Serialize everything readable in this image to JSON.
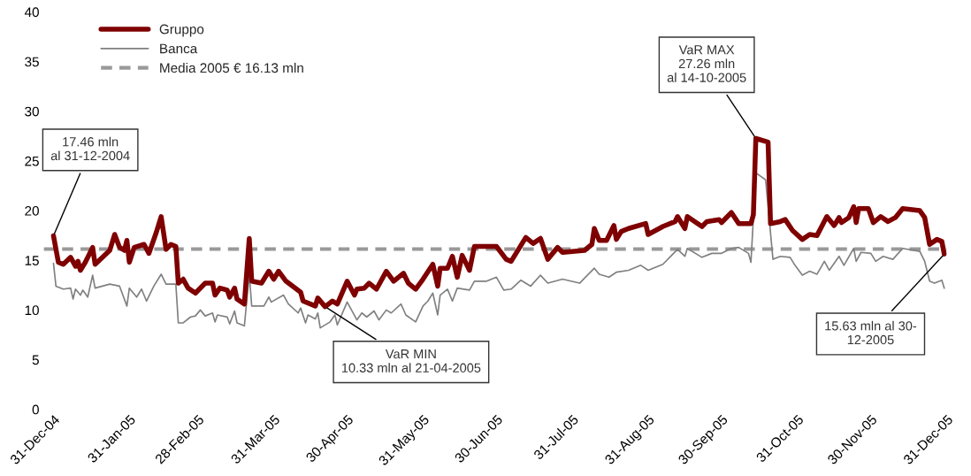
{
  "chart_data": {
    "type": "line",
    "xlim": [
      "2004-12-27",
      "2005-12-31"
    ],
    "xticks": [
      {
        "value": "2004-12-31",
        "label": "31-Dec-04"
      },
      {
        "value": "2005-01-31",
        "label": "31-Jan-05"
      },
      {
        "value": "2005-02-28",
        "label": "28-Feb-05"
      },
      {
        "value": "2005-03-31",
        "label": "31-Mar-05"
      },
      {
        "value": "2005-04-30",
        "label": "30-Apr-05"
      },
      {
        "value": "2005-05-31",
        "label": "31-May-05"
      },
      {
        "value": "2005-06-30",
        "label": "30-Jun-05"
      },
      {
        "value": "2005-07-31",
        "label": "31-Jul-05"
      },
      {
        "value": "2005-08-31",
        "label": "31-Aug-05"
      },
      {
        "value": "2005-09-30",
        "label": "30-Sep-05"
      },
      {
        "value": "2005-10-31",
        "label": "31-Oct-05"
      },
      {
        "value": "2005-11-30",
        "label": "30-Nov-05"
      },
      {
        "value": "2005-12-31",
        "label": "31-Dec-05"
      }
    ],
    "ylim": [
      0,
      40
    ],
    "yticks": [
      0,
      5,
      10,
      15,
      20,
      25,
      30,
      35,
      40
    ],
    "grid": false,
    "legend": "top left",
    "series": [
      {
        "name": "Gruppo",
        "color": "#7f0000",
        "x": [
          "2004-12-31",
          "2005-01-02",
          "2005-01-04",
          "2005-01-07",
          "2005-01-09",
          "2005-01-10",
          "2005-01-11",
          "2005-01-13",
          "2005-01-16",
          "2005-01-17",
          "2005-01-23",
          "2005-01-25",
          "2005-01-27",
          "2005-01-29",
          "2005-01-30",
          "2005-01-31",
          "2005-02-02",
          "2005-02-06",
          "2005-02-08",
          "2005-02-11",
          "2005-02-13",
          "2005-02-15",
          "2005-02-17",
          "2005-02-19",
          "2005-02-20",
          "2005-02-22",
          "2005-02-24",
          "2005-02-27",
          "2005-03-03",
          "2005-03-06",
          "2005-03-07",
          "2005-03-09",
          "2005-03-12",
          "2005-03-13",
          "2005-03-15",
          "2005-03-16",
          "2005-03-19",
          "2005-03-21",
          "2005-03-22",
          "2005-03-26",
          "2005-03-29",
          "2005-03-31",
          "2005-04-02",
          "2005-04-05",
          "2005-04-11",
          "2005-04-12",
          "2005-04-17",
          "2005-04-18",
          "2005-04-21",
          "2005-04-24",
          "2005-04-26",
          "2005-04-30",
          "2005-05-03",
          "2005-05-04",
          "2005-05-07",
          "2005-05-09",
          "2005-05-12",
          "2005-05-16",
          "2005-05-19",
          "2005-05-23",
          "2005-05-25",
          "2005-05-28",
          "2005-05-31",
          "2005-06-04",
          "2005-06-06",
          "2005-06-07",
          "2005-06-10",
          "2005-06-12",
          "2005-06-14",
          "2005-06-16",
          "2005-06-19",
          "2005-06-21",
          "2005-06-30",
          "2005-07-04",
          "2005-07-06",
          "2005-07-12",
          "2005-07-15",
          "2005-07-18",
          "2005-07-21",
          "2005-07-25",
          "2005-07-27",
          "2005-08-05",
          "2005-08-08",
          "2005-08-09",
          "2005-08-11",
          "2005-08-14",
          "2005-08-17",
          "2005-08-18",
          "2005-08-20",
          "2005-08-23",
          "2005-08-30",
          "2005-08-31",
          "2005-09-06",
          "2005-09-11",
          "2005-09-12",
          "2005-09-15",
          "2005-09-16",
          "2005-09-22",
          "2005-09-24",
          "2005-09-29",
          "2005-09-30",
          "2005-10-04",
          "2005-10-07",
          "2005-10-12",
          "2005-10-13",
          "2005-10-14",
          "2005-10-19",
          "2005-10-20",
          "2005-10-24",
          "2005-10-26",
          "2005-10-29",
          "2005-11-02",
          "2005-11-05",
          "2005-11-08",
          "2005-11-12",
          "2005-11-15",
          "2005-11-17",
          "2005-11-18",
          "2005-11-21",
          "2005-11-23",
          "2005-11-24",
          "2005-11-25",
          "2005-11-29",
          "2005-12-01",
          "2005-12-04",
          "2005-12-07",
          "2005-12-10",
          "2005-12-13",
          "2005-12-20",
          "2005-12-22",
          "2005-12-24",
          "2005-12-27",
          "2005-12-29",
          "2005-12-30"
        ],
        "values": [
          17.46,
          14.8,
          14.6,
          15.3,
          14.4,
          14.9,
          14.0,
          14.8,
          16.3,
          14.6,
          16.0,
          17.6,
          16.3,
          16.0,
          17.0,
          14.8,
          16.3,
          16.6,
          15.7,
          17.8,
          19.4,
          16.1,
          16.6,
          16.4,
          12.7,
          13.1,
          12.2,
          11.7,
          12.7,
          12.7,
          11.5,
          12.2,
          12.0,
          11.3,
          12.2,
          11.1,
          10.6,
          17.2,
          12.9,
          12.7,
          13.9,
          13.1,
          13.9,
          12.9,
          11.8,
          10.9,
          10.4,
          11.2,
          10.33,
          10.9,
          10.6,
          12.9,
          11.5,
          12.1,
          12.2,
          12.7,
          12.1,
          13.9,
          12.9,
          13.7,
          12.7,
          12.1,
          13.1,
          14.6,
          12.4,
          14.2,
          14.2,
          15.4,
          13.3,
          15.5,
          14.0,
          16.4,
          16.4,
          15.1,
          14.9,
          17.3,
          16.7,
          17.2,
          15.1,
          16.3,
          15.8,
          16.0,
          16.6,
          18.2,
          17.0,
          17.0,
          18.5,
          17.1,
          17.9,
          18.2,
          18.7,
          17.6,
          18.4,
          18.9,
          19.4,
          18.2,
          19.4,
          18.4,
          18.9,
          19.1,
          18.8,
          19.8,
          18.7,
          18.7,
          19.6,
          27.26,
          26.9,
          18.7,
          18.9,
          19.1,
          18.0,
          17.1,
          17.6,
          17.5,
          19.4,
          18.5,
          19.3,
          18.8,
          19.3,
          20.4,
          18.8,
          20.2,
          20.2,
          18.8,
          19.4,
          18.9,
          19.3,
          20.2,
          20.0,
          19.3,
          16.6,
          17.1,
          16.9,
          15.63
        ]
      },
      {
        "name": "Banca",
        "color": "#808080",
        "x": [
          "2004-12-31",
          "2005-01-01",
          "2005-01-04",
          "2005-01-07",
          "2005-01-08",
          "2005-01-09",
          "2005-01-11",
          "2005-01-12",
          "2005-01-14",
          "2005-01-16",
          "2005-01-17",
          "2005-01-23",
          "2005-01-27",
          "2005-01-30",
          "2005-01-31",
          "2005-02-03",
          "2005-02-05",
          "2005-02-07",
          "2005-02-10",
          "2005-02-13",
          "2005-02-15",
          "2005-02-19",
          "2005-02-20",
          "2005-02-22",
          "2005-02-25",
          "2005-02-27",
          "2005-03-01",
          "2005-03-03",
          "2005-03-06",
          "2005-03-07",
          "2005-03-08",
          "2005-03-12",
          "2005-03-13",
          "2005-03-15",
          "2005-03-16",
          "2005-03-19",
          "2005-03-21",
          "2005-03-22",
          "2005-03-27",
          "2005-03-29",
          "2005-03-30",
          "2005-04-04",
          "2005-04-06",
          "2005-04-10",
          "2005-04-11",
          "2005-04-13",
          "2005-04-14",
          "2005-04-17",
          "2005-04-18",
          "2005-04-19",
          "2005-04-23",
          "2005-04-25",
          "2005-04-26",
          "2005-04-30",
          "2005-05-04",
          "2005-05-06",
          "2005-05-08",
          "2005-05-11",
          "2005-05-13",
          "2005-05-16",
          "2005-05-18",
          "2005-05-22",
          "2005-05-24",
          "2005-05-28",
          "2005-05-31",
          "2005-06-02",
          "2005-06-04",
          "2005-06-06",
          "2005-06-07",
          "2005-06-10",
          "2005-06-12",
          "2005-06-14",
          "2005-06-19",
          "2005-06-21",
          "2005-06-26",
          "2005-06-30",
          "2005-07-03",
          "2005-07-06",
          "2005-07-10",
          "2005-07-14",
          "2005-07-18",
          "2005-07-21",
          "2005-07-27",
          "2005-08-03",
          "2005-08-05",
          "2005-08-09",
          "2005-08-11",
          "2005-08-15",
          "2005-08-18",
          "2005-08-23",
          "2005-08-28",
          "2005-08-31",
          "2005-09-06",
          "2005-09-12",
          "2005-09-15",
          "2005-09-16",
          "2005-09-22",
          "2005-09-26",
          "2005-09-30",
          "2005-10-04",
          "2005-10-07",
          "2005-10-11",
          "2005-10-12",
          "2005-10-14",
          "2005-10-18",
          "2005-10-21",
          "2005-10-24",
          "2005-10-28",
          "2005-10-30",
          "2005-11-02",
          "2005-11-05",
          "2005-11-08",
          "2005-11-11",
          "2005-11-13",
          "2005-11-17",
          "2005-11-19",
          "2005-11-23",
          "2005-11-24",
          "2005-11-26",
          "2005-11-30",
          "2005-12-02",
          "2005-12-05",
          "2005-12-09",
          "2005-12-13",
          "2005-12-20",
          "2005-12-22",
          "2005-12-24",
          "2005-12-26",
          "2005-12-29",
          "2005-12-30"
        ],
        "values": [
          14.7,
          12.4,
          12.1,
          12.2,
          11.1,
          12.1,
          11.5,
          12.0,
          11.3,
          13.5,
          12.2,
          12.6,
          12.4,
          10.4,
          12.2,
          11.3,
          12.1,
          10.9,
          12.4,
          13.6,
          12.6,
          12.6,
          8.7,
          8.7,
          9.3,
          9.4,
          10.0,
          9.4,
          9.7,
          8.8,
          9.5,
          9.3,
          8.6,
          9.9,
          8.7,
          8.4,
          13.6,
          10.4,
          10.4,
          11.3,
          10.8,
          11.5,
          10.6,
          9.7,
          10.2,
          8.7,
          9.5,
          9.1,
          9.7,
          8.2,
          8.8,
          9.5,
          8.5,
          10.8,
          9.0,
          9.7,
          9.3,
          9.9,
          9.0,
          10.0,
          9.7,
          10.6,
          9.5,
          8.8,
          10.4,
          10.9,
          11.7,
          9.5,
          11.5,
          12.1,
          10.9,
          12.2,
          12.0,
          12.9,
          12.9,
          13.3,
          12.0,
          12.1,
          13.0,
          12.4,
          13.5,
          12.7,
          13.1,
          12.7,
          13.2,
          14.2,
          13.6,
          13.3,
          13.8,
          14.0,
          14.5,
          14.0,
          14.6,
          16.1,
          15.4,
          16.2,
          15.3,
          15.7,
          15.7,
          16.2,
          16.3,
          15.7,
          14.8,
          23.8,
          23.1,
          15.1,
          15.4,
          15.3,
          14.5,
          13.5,
          13.9,
          13.6,
          14.9,
          14.0,
          15.4,
          14.5,
          16.2,
          14.9,
          15.8,
          15.7,
          14.9,
          15.4,
          15.1,
          16.2,
          15.9,
          14.9,
          12.9,
          12.7,
          13.0,
          12.2
        ]
      }
    ],
    "ref_lines": [
      {
        "axis": "y",
        "value": 16.13,
        "label": "Media 2005 € 16.13 mln",
        "color": "#999999",
        "line_style": "dashed"
      }
    ],
    "annotations": [
      {
        "text": "17.46 mln\nal 31-12-2004",
        "x": "2004-12-31",
        "y": 17.46
      },
      {
        "text": "VaR MIN\n10.33 mln al 21-04-2005",
        "x": "2005-04-21",
        "y": 10.33
      },
      {
        "text": "VaR MAX\n27.26 mln\nal 14-10-2005",
        "x": "2005-10-14",
        "y": 27.26
      },
      {
        "text": "15.63 mln al 30-\n12-2005",
        "x": "2005-12-30",
        "y": 15.63
      }
    ]
  }
}
